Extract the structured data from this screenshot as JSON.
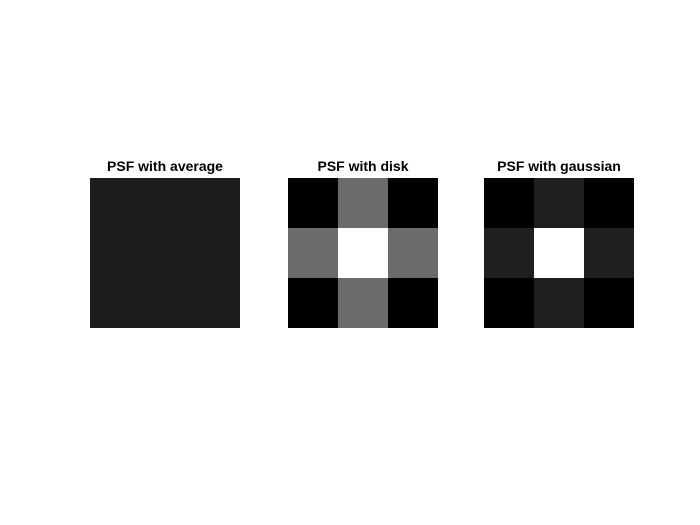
{
  "figure": {
    "panels": [
      {
        "title": "PSF with average",
        "grid": [
          [
            0.111,
            0.111,
            0.111
          ],
          [
            0.111,
            0.111,
            0.111
          ],
          [
            0.111,
            0.111,
            0.111
          ]
        ]
      },
      {
        "title": "PSF with disk",
        "grid": [
          [
            0.0,
            0.42,
            0.0
          ],
          [
            0.42,
            1.0,
            0.42
          ],
          [
            0.0,
            0.42,
            0.0
          ]
        ]
      },
      {
        "title": "PSF with gaussian",
        "grid": [
          [
            0.0,
            0.12,
            0.0
          ],
          [
            0.12,
            1.0,
            0.12
          ],
          [
            0.0,
            0.12,
            0.0
          ]
        ]
      }
    ]
  }
}
